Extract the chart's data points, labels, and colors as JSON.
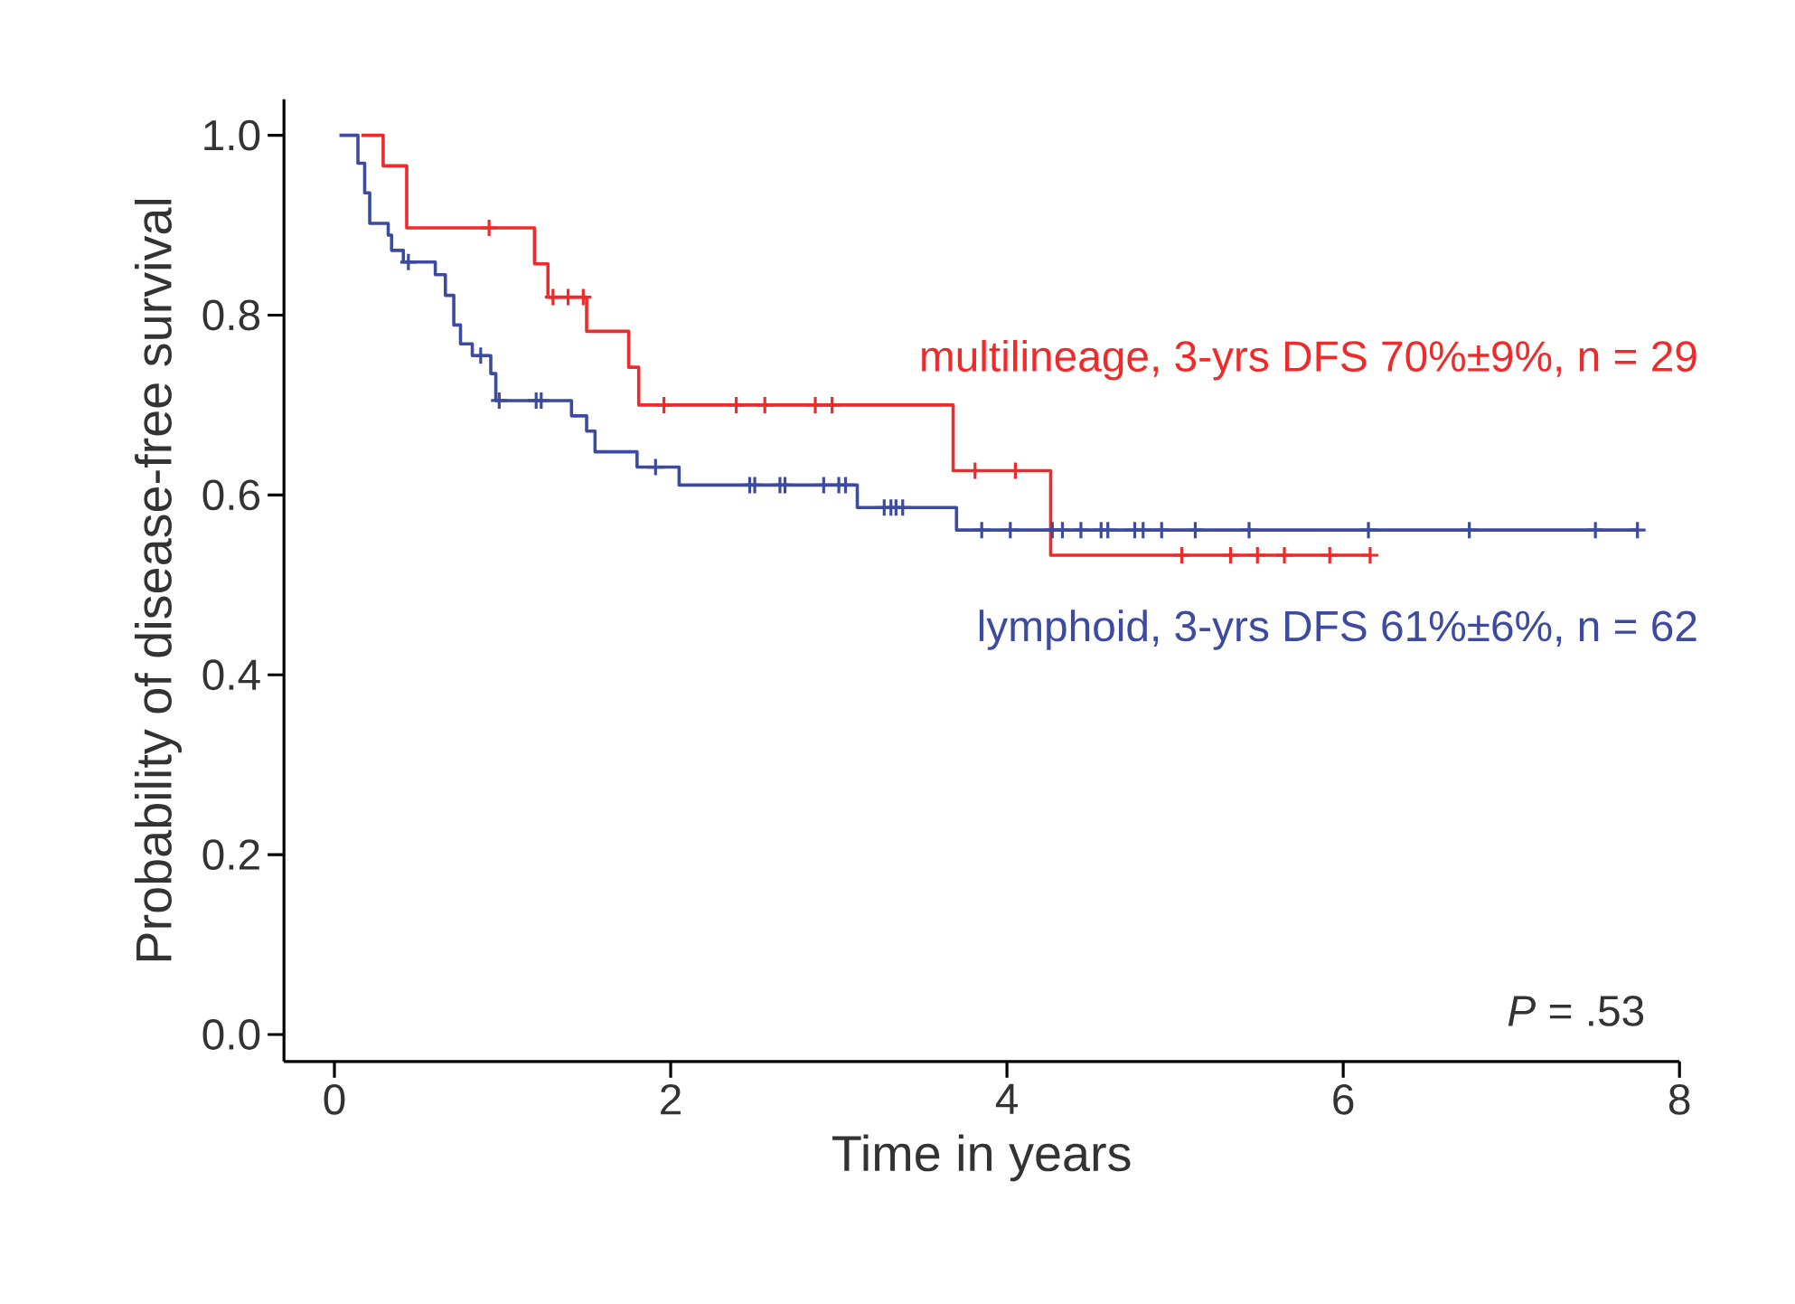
{
  "chart_data": {
    "type": "step",
    "xlabel": "Time in years",
    "ylabel": "Probability of disease-free survival",
    "xlim": [
      -0.3,
      8
    ],
    "ylim": [
      -0.03,
      1.04
    ],
    "xticks": [
      0,
      2,
      4,
      6,
      8
    ],
    "yticks": [
      {
        "value": 0,
        "label": "0.0"
      },
      {
        "value": 0.2,
        "label": "0.2"
      },
      {
        "value": 0.4,
        "label": "0.4"
      },
      {
        "value": 0.6,
        "label": "0.6"
      },
      {
        "value": 0.8,
        "label": "0.8"
      },
      {
        "value": 1,
        "label": "1.0"
      }
    ],
    "annotations": [
      "*P* = .53"
    ],
    "series": [
      {
        "name": "multilineage, 3-yrs DFS 70%±9%, n = 29",
        "color": "#ee2a2a",
        "x": [
          0.16,
          0.29,
          0.43,
          1.19,
          1.27,
          1.5,
          1.75,
          1.81,
          3.68,
          4.26,
          6.16
        ],
        "values": [
          1.0,
          0.966,
          0.897,
          0.857,
          0.82,
          0.782,
          0.742,
          0.7,
          0.627,
          0.533,
          0.533
        ]
      },
      {
        "name": "lymphoid, 3-yrs DFS 61%±6%, n = 62",
        "color": "#3c4aa0",
        "x": [
          0.03,
          0.14,
          0.18,
          0.21,
          0.32,
          0.34,
          0.41,
          0.6,
          0.66,
          0.71,
          0.75,
          0.82,
          0.93,
          0.96,
          1.41,
          1.5,
          1.55,
          1.8,
          2.05,
          3.11,
          3.7,
          7.75
        ],
        "values": [
          1.0,
          0.969,
          0.936,
          0.902,
          0.889,
          0.872,
          0.859,
          0.845,
          0.822,
          0.789,
          0.768,
          0.755,
          0.735,
          0.705,
          0.688,
          0.671,
          0.648,
          0.631,
          0.611,
          0.586,
          0.561,
          0.561
        ]
      },
      {
        "color": "#ee2a2a",
        "type": "scatter",
        "marker": "cross",
        "x": [
          0.92,
          1.3,
          1.39,
          1.48,
          1.96,
          2.39,
          2.56,
          2.86,
          2.96,
          3.81,
          4.05,
          5.04,
          5.33,
          5.49,
          5.65,
          5.92,
          6.16
        ],
        "values": [
          0.897,
          0.82,
          0.82,
          0.82,
          0.7,
          0.7,
          0.7,
          0.7,
          0.7,
          0.627,
          0.627,
          0.533,
          0.533,
          0.533,
          0.533,
          0.533,
          0.533
        ]
      },
      {
        "color": "#3c4aa0",
        "type": "scatter",
        "marker": "cross",
        "x": [
          0.44,
          0.87,
          0.98,
          1.2,
          1.23,
          1.91,
          2.47,
          2.5,
          2.65,
          2.68,
          2.91,
          3.0,
          3.04,
          3.27,
          3.31,
          3.34,
          3.38,
          3.85,
          4.02,
          4.27,
          4.33,
          4.44,
          4.56,
          4.6,
          4.76,
          4.81,
          4.92,
          5.12,
          5.44,
          6.15,
          6.75,
          7.5,
          7.75
        ],
        "values": [
          0.859,
          0.755,
          0.705,
          0.705,
          0.705,
          0.631,
          0.611,
          0.611,
          0.611,
          0.611,
          0.611,
          0.611,
          0.611,
          0.586,
          0.586,
          0.586,
          0.586,
          0.561,
          0.561,
          0.561,
          0.561,
          0.561,
          0.561,
          0.561,
          0.561,
          0.561,
          0.561,
          0.561,
          0.561,
          0.561,
          0.561,
          0.561,
          0.561
        ]
      }
    ]
  }
}
